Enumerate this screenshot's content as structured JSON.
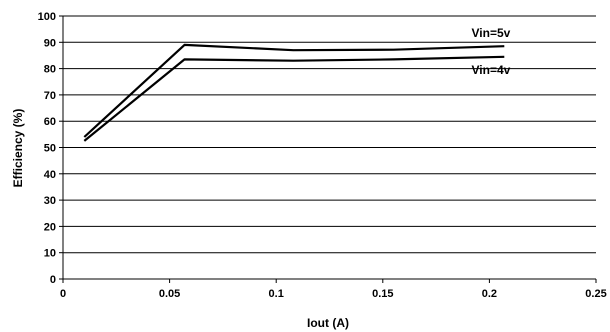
{
  "chart_data": {
    "type": "line",
    "xlabel": "Iout (A)",
    "ylabel": "Efficiency (%)",
    "xlim": [
      0,
      0.25
    ],
    "ylim": [
      0,
      100
    ],
    "xticks": [
      0,
      0.05,
      0.1,
      0.15,
      0.2,
      0.25
    ],
    "xtick_labels": [
      "0",
      "0.05",
      "0.1",
      "0.15",
      "0.2",
      "0.25"
    ],
    "yticks": [
      0,
      10,
      20,
      30,
      40,
      50,
      60,
      70,
      80,
      90,
      100
    ],
    "ytick_labels": [
      "0",
      "10",
      "20",
      "30",
      "40",
      "50",
      "60",
      "70",
      "80",
      "90",
      "100"
    ],
    "grid": "horizontal",
    "line_color": "#000000",
    "series": [
      {
        "name": "Vin=5v",
        "x": [
          0.01,
          0.057,
          0.108,
          0.155,
          0.207
        ],
        "y": [
          54,
          89,
          87,
          87.2,
          88.5
        ]
      },
      {
        "name": "Vin=4v",
        "x": [
          0.01,
          0.057,
          0.108,
          0.155,
          0.207
        ],
        "y": [
          52.5,
          83.5,
          83,
          83.5,
          84.5
        ]
      }
    ]
  }
}
